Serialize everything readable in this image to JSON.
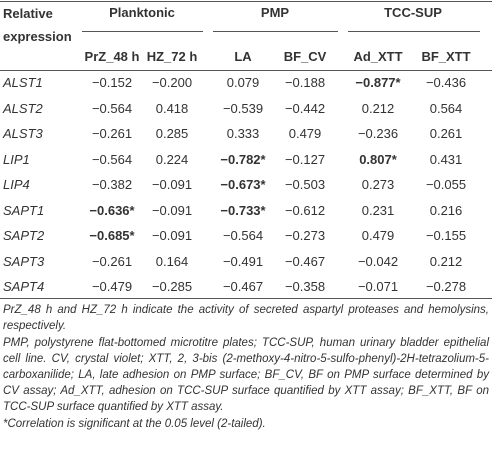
{
  "table": {
    "header": {
      "corner": "Relative expression",
      "groups": [
        {
          "label": "Planktonic",
          "columns": [
            "PrZ_48 h",
            "HZ_72 h"
          ]
        },
        {
          "label": "PMP",
          "columns": [
            "LA",
            "BF_CV"
          ]
        },
        {
          "label": "TCC-SUP",
          "columns": [
            "Ad_XTT",
            "BF_XTT"
          ]
        }
      ]
    },
    "rows": [
      {
        "gene": "ALST1",
        "values": [
          "−0.152",
          "−0.200",
          "0.079",
          "−0.188",
          "−0.877*",
          "−0.436"
        ]
      },
      {
        "gene": "ALST2",
        "values": [
          "−0.564",
          "0.418",
          "−0.539",
          "−0.442",
          "0.212",
          "0.564"
        ]
      },
      {
        "gene": "ALST3",
        "values": [
          "−0.261",
          "0.285",
          "0.333",
          "0.479",
          "−0.236",
          "0.261"
        ]
      },
      {
        "gene": "LIP1",
        "values": [
          "−0.564",
          "0.224",
          "−0.782*",
          "−0.127",
          "0.807*",
          "0.431"
        ]
      },
      {
        "gene": "LIP4",
        "values": [
          "−0.382",
          "−0.091",
          "−0.673*",
          "−0.503",
          "0.273",
          "−0.055"
        ]
      },
      {
        "gene": "SAPT1",
        "values": [
          "−0.636*",
          "−0.091",
          "−0.733*",
          "−0.612",
          "0.231",
          "0.216"
        ]
      },
      {
        "gene": "SAPT2",
        "values": [
          "−0.685*",
          "−0.091",
          "−0.564",
          "−0.273",
          "0.479",
          "−0.155"
        ]
      },
      {
        "gene": "SAPT3",
        "values": [
          "−0.261",
          "0.164",
          "−0.491",
          "−0.467",
          "−0.042",
          "0.212"
        ]
      },
      {
        "gene": "SAPT4",
        "values": [
          "−0.479",
          "−0.285",
          "−0.467",
          "−0.358",
          "−0.071",
          "−0.278"
        ]
      }
    ]
  },
  "notes": [
    "PrZ_48 h and HZ_72 h indicate the activity of secreted aspartyl proteases and hemolysins, respectively.",
    "PMP, polystyrene flat-bottomed microtitre plates; TCC-SUP, human urinary bladder epithelial cell line. CV, crystal violet; XTT, 2, 3-bis (2-methoxy-4-nitro-5-sulfo-phenyl)-2H-tetrazolium-5-carboxanilide; LA, late adhesion on PMP surface; BF_CV, BF on PMP surface determined by CV assay; Ad_XTT, adhesion on TCC-SUP surface quantified by XTT assay; BF_XTT, BF on TCC-SUP surface quantified by XTT assay.",
    "*Correlation is significant at the 0.05 level (2-tailed)."
  ]
}
